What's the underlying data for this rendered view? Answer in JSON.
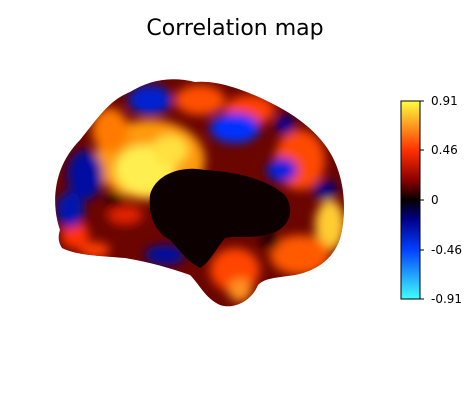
{
  "title": "Correlation map",
  "colorbar": {
    "ticks": [
      "0.91",
      "0.46",
      "0",
      "-0.46",
      "-0.91"
    ],
    "range": [
      -0.91,
      0.91
    ],
    "colormap": "cold_hot",
    "colors": {
      "max": "#ffff40",
      "high": "#ff3000",
      "mid_pos": "#8a0000",
      "zero": "#050000",
      "mid_neg": "#00008a",
      "low": "#0040ff",
      "min": "#40ffff"
    }
  },
  "brain_view": {
    "hemisphere": "left",
    "view": "lateral",
    "medial_wall_color": "#0d0000"
  }
}
